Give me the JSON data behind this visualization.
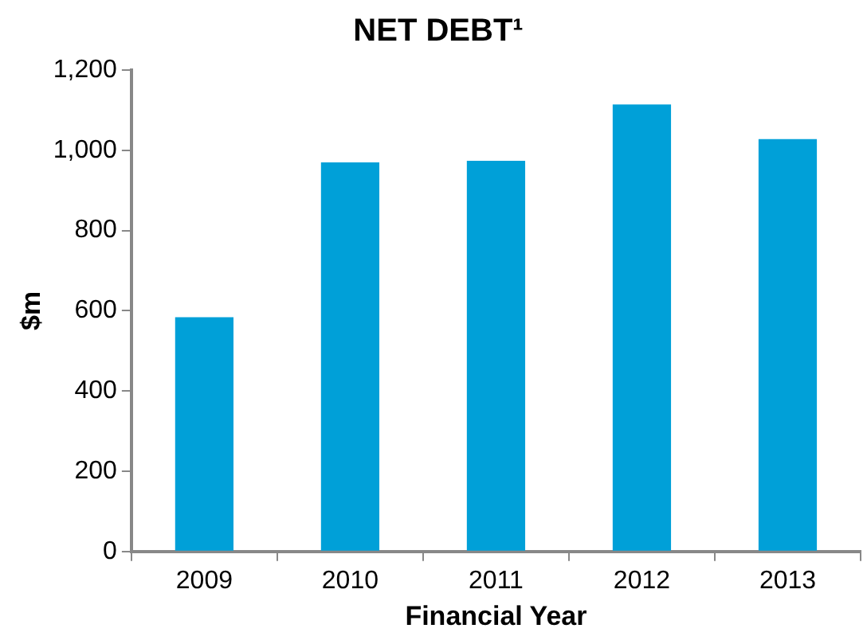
{
  "chart_data": {
    "type": "bar",
    "title": "NET DEBT¹",
    "xlabel": "Financial Year",
    "ylabel": "$m",
    "categories": [
      "2009",
      "2010",
      "2011",
      "2012",
      "2013"
    ],
    "values": [
      584,
      970,
      974,
      1114,
      1028
    ],
    "color": "#00a0d8",
    "ylim": [
      0,
      1200
    ],
    "yticks": [
      {
        "value": 0,
        "label": "0"
      },
      {
        "value": 200,
        "label": "200"
      },
      {
        "value": 400,
        "label": "400"
      },
      {
        "value": 600,
        "label": "600"
      },
      {
        "value": 800,
        "label": "800"
      },
      {
        "value": 1000,
        "label": "1,000"
      },
      {
        "value": 1200,
        "label": "1,200"
      }
    ],
    "grid": false,
    "legend": false
  }
}
